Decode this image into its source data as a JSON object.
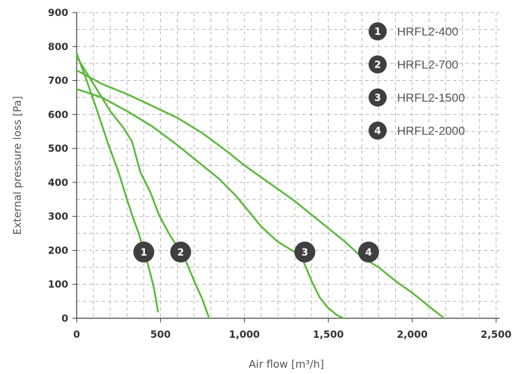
{
  "chart_data": {
    "type": "line",
    "xlabel": "Air flow [m³/h]",
    "ylabel": "External pressure loss [Pa]",
    "xlim": [
      0,
      2500
    ],
    "ylim": [
      0,
      900
    ],
    "x_ticks": [
      0,
      500,
      1000,
      1500,
      2000,
      2500
    ],
    "x_tick_labels": [
      "0",
      "500",
      "1,000",
      "1,500",
      "2,000",
      "2,500"
    ],
    "y_ticks": [
      0,
      100,
      200,
      300,
      400,
      500,
      600,
      700,
      800,
      900
    ],
    "y_tick_labels": [
      "0",
      "100",
      "200",
      "300",
      "400",
      "500",
      "600",
      "700",
      "800",
      "900"
    ],
    "grid": true,
    "legend_position": "top-right",
    "line_color": "#5cb83c",
    "badge_color": "#3f3f3f",
    "series": [
      {
        "name": "HRFL2-400",
        "badge": "1",
        "label_point": [
          400,
          195
        ],
        "points": [
          [
            0,
            780
          ],
          [
            60,
            700
          ],
          [
            130,
            600
          ],
          [
            190,
            510
          ],
          [
            250,
            430
          ],
          [
            300,
            350
          ],
          [
            340,
            290
          ],
          [
            370,
            250
          ],
          [
            400,
            200
          ],
          [
            430,
            150
          ],
          [
            460,
            90
          ],
          [
            485,
            20
          ]
        ]
      },
      {
        "name": "HRFL2-700",
        "badge": "2",
        "label_point": [
          620,
          195
        ],
        "points": [
          [
            0,
            770
          ],
          [
            100,
            690
          ],
          [
            200,
            610
          ],
          [
            280,
            560
          ],
          [
            330,
            520
          ],
          [
            380,
            430
          ],
          [
            440,
            370
          ],
          [
            490,
            305
          ],
          [
            550,
            250
          ],
          [
            600,
            210
          ],
          [
            650,
            170
          ],
          [
            700,
            110
          ],
          [
            750,
            55
          ],
          [
            790,
            0
          ]
        ]
      },
      {
        "name": "HRFL2-1500",
        "badge": "3",
        "label_point": [
          1360,
          195
        ],
        "points": [
          [
            0,
            675
          ],
          [
            150,
            650
          ],
          [
            300,
            610
          ],
          [
            450,
            565
          ],
          [
            600,
            510
          ],
          [
            750,
            450
          ],
          [
            850,
            410
          ],
          [
            950,
            360
          ],
          [
            1000,
            330
          ],
          [
            1100,
            270
          ],
          [
            1200,
            225
          ],
          [
            1300,
            195
          ],
          [
            1350,
            170
          ],
          [
            1400,
            110
          ],
          [
            1450,
            60
          ],
          [
            1500,
            30
          ],
          [
            1550,
            10
          ],
          [
            1590,
            0
          ]
        ]
      },
      {
        "name": "HRFL2-2000",
        "badge": "4",
        "label_point": [
          1740,
          195
        ],
        "points": [
          [
            0,
            730
          ],
          [
            150,
            690
          ],
          [
            300,
            660
          ],
          [
            450,
            625
          ],
          [
            600,
            590
          ],
          [
            750,
            545
          ],
          [
            900,
            490
          ],
          [
            1000,
            450
          ],
          [
            1100,
            415
          ],
          [
            1200,
            380
          ],
          [
            1300,
            345
          ],
          [
            1400,
            305
          ],
          [
            1500,
            265
          ],
          [
            1600,
            225
          ],
          [
            1700,
            180
          ],
          [
            1800,
            150
          ],
          [
            1900,
            110
          ],
          [
            2000,
            75
          ],
          [
            2100,
            35
          ],
          [
            2190,
            0
          ]
        ]
      }
    ]
  }
}
